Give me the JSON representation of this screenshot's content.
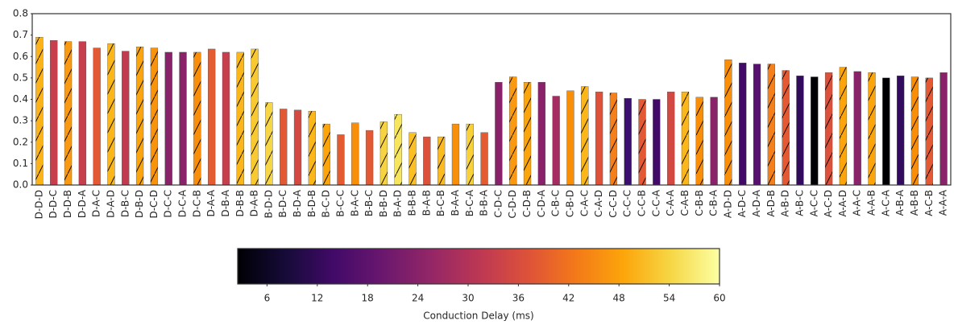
{
  "chart_data": {
    "type": "bar",
    "categories": [
      "D-D-D",
      "D-D-C",
      "D-D-B",
      "D-D-A",
      "D-A-C",
      "D-A-D",
      "D-B-C",
      "D-B-D",
      "D-C-D",
      "D-C-C",
      "D-C-A",
      "D-C-B",
      "D-A-A",
      "D-B-A",
      "D-B-B",
      "D-A-B",
      "B-D-D",
      "B-D-C",
      "B-D-A",
      "B-D-B",
      "B-C-D",
      "B-C-C",
      "B-A-C",
      "B-B-C",
      "B-B-D",
      "B-A-D",
      "B-B-B",
      "B-A-B",
      "B-C-B",
      "B-A-A",
      "B-C-A",
      "B-B-A",
      "C-D-C",
      "C-D-D",
      "C-D-B",
      "C-D-A",
      "C-B-C",
      "C-B-D",
      "C-A-C",
      "C-A-D",
      "C-C-D",
      "C-C-C",
      "C-C-B",
      "C-C-A",
      "C-A-A",
      "C-A-B",
      "C-B-B",
      "C-B-A",
      "A-D-D",
      "A-D-C",
      "A-D-A",
      "A-D-B",
      "A-B-D",
      "A-B-C",
      "A-C-C",
      "A-C-D",
      "A-A-D",
      "A-A-C",
      "A-A-B",
      "A-C-A",
      "A-B-A",
      "A-B-B",
      "A-C-B",
      "A-A-A"
    ],
    "values": [
      0.69,
      0.675,
      0.67,
      0.67,
      0.64,
      0.66,
      0.625,
      0.645,
      0.64,
      0.62,
      0.62,
      0.62,
      0.635,
      0.62,
      0.62,
      0.635,
      0.385,
      0.355,
      0.35,
      0.345,
      0.285,
      0.235,
      0.29,
      0.255,
      0.295,
      0.33,
      0.245,
      0.225,
      0.225,
      0.285,
      0.285,
      0.245,
      0.48,
      0.505,
      0.48,
      0.48,
      0.415,
      0.44,
      0.46,
      0.435,
      0.43,
      0.405,
      0.4,
      0.4,
      0.435,
      0.435,
      0.41,
      0.41,
      0.585,
      0.57,
      0.565,
      0.565,
      0.535,
      0.51,
      0.505,
      0.525,
      0.55,
      0.53,
      0.525,
      0.5,
      0.51,
      0.505,
      0.5,
      0.525
    ],
    "colors": [
      "#fcb31a",
      "#c73e4c",
      "#f99a12",
      "#c73e4c",
      "#e35933",
      "#fbb61a",
      "#c03a50",
      "#faa50f",
      "#f7930c",
      "#8a226a",
      "#8a226a",
      "#f98e0a",
      "#e55c30",
      "#c73e4c",
      "#fbb61a",
      "#f8c931",
      "#f6d645",
      "#e35933",
      "#d44842",
      "#fbb61a",
      "#fca50a",
      "#e45a31",
      "#f98e09",
      "#e35933",
      "#f7d340",
      "#f8e55e",
      "#fbbe23",
      "#dd513a",
      "#fbba1f",
      "#f98e09",
      "#f8d13a",
      "#e45a31",
      "#8a226a",
      "#f99a12",
      "#fca50a",
      "#8a226a",
      "#a52c60",
      "#f98e09",
      "#fbb61a",
      "#dd513a",
      "#f4801c",
      "#3b0f70",
      "#e35933",
      "#420a68",
      "#d44842",
      "#fbb61a",
      "#f98e09",
      "#8a226a",
      "#f98e09",
      "#420a68",
      "#57106e",
      "#f4801c",
      "#e35933",
      "#320a5e",
      "#000004",
      "#dd513a",
      "#fca50a",
      "#8a226a",
      "#fca50a",
      "#000004",
      "#320a5e",
      "#f98e09",
      "#e35933",
      "#8a226a"
    ],
    "hatch": [
      true,
      false,
      true,
      false,
      false,
      true,
      false,
      true,
      true,
      false,
      false,
      true,
      false,
      false,
      true,
      true,
      true,
      false,
      false,
      true,
      true,
      false,
      false,
      false,
      true,
      true,
      true,
      false,
      true,
      false,
      true,
      false,
      false,
      true,
      true,
      false,
      false,
      false,
      true,
      false,
      true,
      false,
      true,
      false,
      false,
      true,
      true,
      false,
      true,
      false,
      false,
      true,
      true,
      false,
      false,
      true,
      true,
      false,
      true,
      false,
      false,
      true,
      true,
      false
    ],
    "ylim": [
      0,
      0.8
    ],
    "yticks": [
      {
        "value": 0,
        "label": "0.0"
      },
      0.1,
      0.2,
      0.3,
      0.4,
      0.5,
      0.6,
      0.7,
      0.8
    ],
    "colorbar": {
      "label": "Conduction Delay (ms)",
      "colormap": "inferno",
      "lim": [
        2.5,
        60
      ],
      "ticks": [
        6,
        12,
        18,
        24,
        30,
        36,
        42,
        48,
        54,
        60
      ]
    }
  }
}
